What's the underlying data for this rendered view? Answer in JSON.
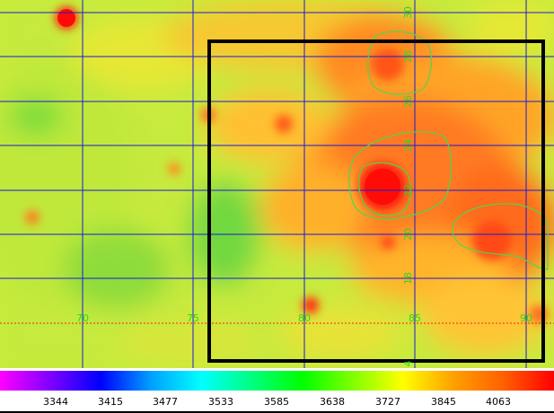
{
  "map": {
    "x_axis_labels": [
      "70",
      "75",
      "80",
      "85",
      "90"
    ],
    "y_axis_labels": [
      "30",
      "28",
      "26",
      "24",
      "22",
      "20",
      "18",
      "4"
    ],
    "grid_color": "#1a1ad8",
    "label_color": "#22dd22",
    "contour_color": "#4fd64f",
    "highlight_line_color": "#ee2222",
    "selection_box_color": "#000000"
  },
  "colorbar": {
    "gradient": [
      "#ff00ff",
      "#8000ff",
      "#0000ff",
      "#00a0ff",
      "#00ffff",
      "#00ff80",
      "#00ff00",
      "#80ff00",
      "#ffff00",
      "#ffa000",
      "#ff6000",
      "#ff0000"
    ],
    "tick_labels": [
      "3344",
      "3415",
      "3477",
      "3533",
      "3585",
      "3638",
      "3727",
      "3845",
      "4063"
    ]
  }
}
